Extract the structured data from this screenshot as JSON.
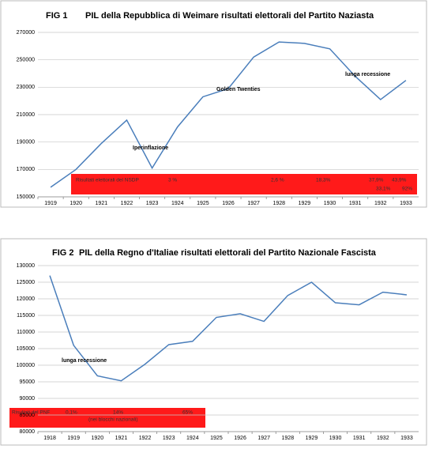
{
  "chart_data": [
    {
      "type": "line",
      "fig": "FIG 1",
      "title": "PIL della Repubblica di Weimare risultati elettorali del Partito Naziasta",
      "categories": [
        "1919",
        "1920",
        "1921",
        "1922",
        "1923",
        "1924",
        "1925",
        "1926",
        "1927",
        "1928",
        "1929",
        "1930",
        "1931",
        "1932",
        "1933"
      ],
      "values": [
        157000,
        170000,
        189000,
        206000,
        171000,
        201000,
        223000,
        229000,
        252000,
        263000,
        262000,
        258000,
        238000,
        221000,
        235000
      ],
      "color": "#4a7ebb",
      "ylim": [
        150000,
        270000
      ],
      "yticks": [
        150000,
        170000,
        190000,
        210000,
        230000,
        250000,
        270000
      ],
      "grid": true,
      "annotations": [
        "Iperinflazione",
        "Golden Twenties",
        "lunga recessione"
      ],
      "box_labels": [
        "Risultati elettorali del NSDP",
        "3 %",
        "2,6 %",
        "18,3%",
        "37,9%",
        "43,9%",
        "33,1%",
        "92%"
      ]
    },
    {
      "type": "line",
      "fig": "FIG 2",
      "title": "PIL della Regno d'Italiae risultati elettorali del Partito Nazionale Fascista",
      "categories": [
        "1918",
        "1919",
        "1920",
        "1921",
        "1922",
        "1923",
        "1924",
        "1925",
        "1926",
        "1927",
        "1928",
        "1929",
        "1930",
        "1931",
        "1932",
        "1933"
      ],
      "values": [
        127000,
        106000,
        96800,
        95300,
        100300,
        106200,
        107200,
        114400,
        115500,
        113200,
        121000,
        125000,
        118800,
        118200,
        122000,
        121200
      ],
      "color": "#4a7ebb",
      "ylim": [
        80000,
        130000
      ],
      "yticks": [
        80000,
        85000,
        90000,
        95000,
        100000,
        105000,
        110000,
        115000,
        120000,
        125000,
        130000
      ],
      "grid": true,
      "annotations": [
        "lunga recessione"
      ],
      "box_labels": [
        "Risultati del PNF",
        "0,1%",
        "14%",
        "(nei blocchi nazionali)",
        "65%"
      ]
    }
  ]
}
